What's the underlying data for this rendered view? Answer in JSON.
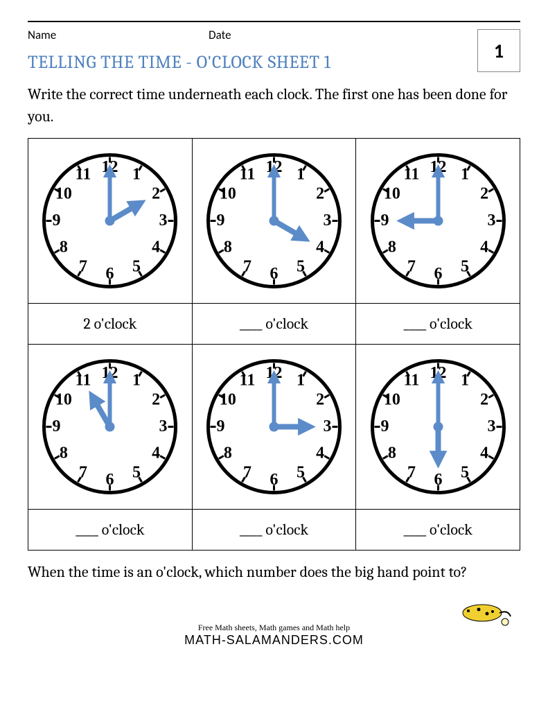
{
  "header": {
    "name_label": "Name",
    "date_label": "Date",
    "badge_number": "1"
  },
  "title": "TELLING THE TIME - O'CLOCK SHEET 1",
  "instructions": "Write the correct time underneath each clock. The first one has been done for you.",
  "question": "When the time is an o'clock, which number does the big hand point to?",
  "footer": {
    "tagline": "Free Math sheets, Math games and Math help",
    "url": "MATH-SALAMANDERS.COM"
  },
  "clock_style": {
    "face_radius": 95,
    "outline_width": 5,
    "outline_color": "#000000",
    "number_radius": 77,
    "hand_color": "#5b8bc9",
    "hour_hand_length": 50,
    "hour_hand_width": 8,
    "minute_hand_length": 74,
    "minute_hand_width": 6,
    "hub_radius": 7,
    "numbers": [
      "12",
      "1",
      "2",
      "3",
      "4",
      "5",
      "6",
      "7",
      "8",
      "9",
      "10",
      "11"
    ]
  },
  "clocks": [
    {
      "hour": 2,
      "answer": "2 o'clock"
    },
    {
      "hour": 4,
      "answer": "____ o'clock"
    },
    {
      "hour": 9,
      "answer": "____ o'clock"
    },
    {
      "hour": 11,
      "answer": "____ o'clock"
    },
    {
      "hour": 3,
      "answer": "____ o'clock"
    },
    {
      "hour": 6,
      "answer": "____ o'clock"
    }
  ]
}
